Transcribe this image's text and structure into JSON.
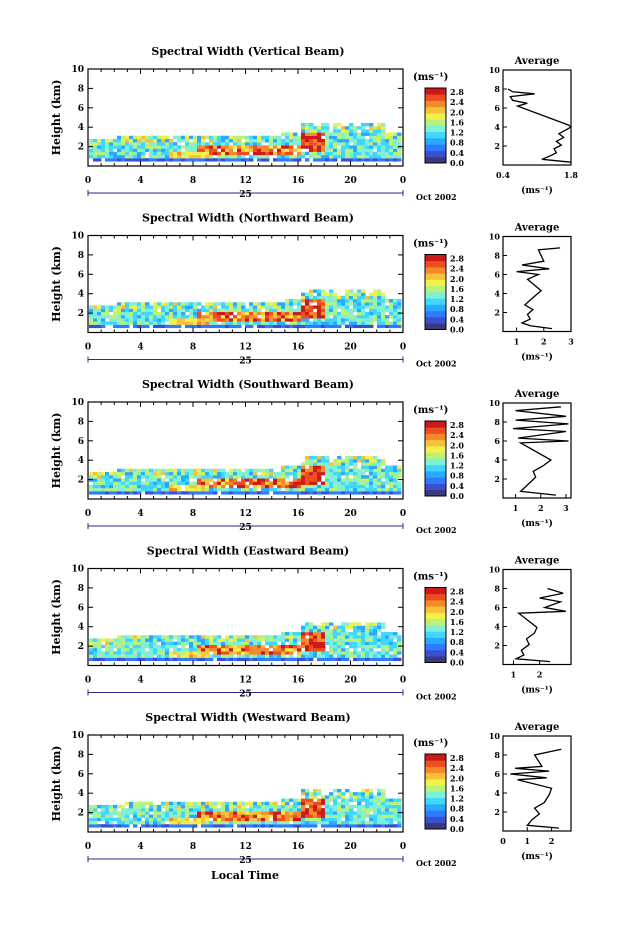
{
  "figure": {
    "bottom_label": "Local Time",
    "colors": {
      "colorbar": [
        "#3a3a7a",
        "#3c4fd0",
        "#2f7bff",
        "#29a9ff",
        "#3fd6ff",
        "#7ef0d8",
        "#b8f27a",
        "#f2f04a",
        "#f7c23a",
        "#f58a2a",
        "#ef4d1f",
        "#cc1a1a"
      ],
      "axis": "#000000",
      "date_axis": "#2a2a8a"
    }
  },
  "chart_data": [
    {
      "type": "heatmap",
      "title": "Spectral Width (Vertical Beam)",
      "ylabel": "Height (km)",
      "ylim": [
        0,
        10
      ],
      "yticks": [
        "2",
        "4",
        "6",
        "8",
        "10"
      ],
      "xlim": [
        0,
        24
      ],
      "xticks": [
        "0",
        "4",
        "8",
        "12",
        "16",
        "20",
        "0"
      ],
      "date_day": "25",
      "date_label": "Oct 2002",
      "colorbar": {
        "unit": "(ms⁻¹)",
        "ticks": [
          "0.0",
          "0.4",
          "0.8",
          "1.2",
          "1.6",
          "2.0",
          "2.4",
          "2.8"
        ]
      },
      "average": {
        "title": "Average",
        "xlabel": "(ms⁻¹)",
        "xlim": [
          0.4,
          1.8
        ],
        "xticks": [
          "0.4",
          "1.8"
        ],
        "ylim": [
          0,
          10
        ],
        "yticks": [
          "2",
          "4",
          "6",
          "8",
          "10"
        ],
        "profile": [
          [
            1.8,
            0.3
          ],
          [
            1.2,
            0.6
          ],
          [
            1.35,
            0.9
          ],
          [
            1.5,
            1.3
          ],
          [
            1.45,
            1.7
          ],
          [
            1.6,
            2.1
          ],
          [
            1.5,
            2.5
          ],
          [
            1.65,
            2.9
          ],
          [
            1.55,
            3.3
          ],
          [
            1.7,
            3.7
          ],
          [
            1.8,
            4.0
          ],
          [
            1.75,
            4.2
          ],
          [
            0.7,
            6.2
          ],
          [
            0.9,
            6.5
          ],
          [
            0.6,
            6.8
          ],
          [
            0.55,
            7.2
          ],
          [
            1.05,
            7.5
          ],
          [
            0.6,
            7.7
          ],
          [
            0.5,
            8.0
          ]
        ]
      }
    },
    {
      "type": "heatmap",
      "title": "Spectral Width (Northward Beam)",
      "ylabel": "Height (km)",
      "ylim": [
        0,
        10
      ],
      "yticks": [
        "2",
        "4",
        "6",
        "8",
        "10"
      ],
      "xlim": [
        0,
        24
      ],
      "xticks": [
        "0",
        "4",
        "8",
        "12",
        "16",
        "20",
        "0"
      ],
      "date_day": "25",
      "date_label": "Oct 2002",
      "colorbar": {
        "unit": "(ms⁻¹)",
        "ticks": [
          "0.0",
          "0.4",
          "0.8",
          "1.2",
          "1.6",
          "2.0",
          "2.4",
          "2.8"
        ]
      },
      "average": {
        "title": "Average",
        "xlabel": "(ms⁻¹)",
        "xlim": [
          0.5,
          3
        ],
        "xticks": [
          "1",
          "2",
          "3"
        ],
        "ylim": [
          0,
          10
        ],
        "yticks": [
          "2",
          "4",
          "6",
          "8",
          "10"
        ],
        "profile": [
          [
            2.3,
            0.3
          ],
          [
            1.5,
            0.6
          ],
          [
            1.2,
            0.9
          ],
          [
            1.5,
            1.3
          ],
          [
            1.4,
            1.8
          ],
          [
            1.6,
            2.3
          ],
          [
            1.3,
            2.8
          ],
          [
            1.5,
            3.3
          ],
          [
            1.7,
            3.8
          ],
          [
            1.9,
            4.3
          ],
          [
            1.4,
            5.5
          ],
          [
            1.8,
            6.0
          ],
          [
            1.0,
            6.3
          ],
          [
            2.2,
            6.6
          ],
          [
            1.2,
            7.0
          ],
          [
            2.0,
            7.4
          ],
          [
            1.8,
            8.6
          ],
          [
            2.6,
            8.8
          ]
        ]
      }
    },
    {
      "type": "heatmap",
      "title": "Spectral Width (Southward Beam)",
      "ylabel": "Height (km)",
      "ylim": [
        0,
        10
      ],
      "yticks": [
        "2",
        "4",
        "6",
        "8",
        "10"
      ],
      "xlim": [
        0,
        24
      ],
      "xticks": [
        "0",
        "4",
        "8",
        "12",
        "16",
        "20",
        "0"
      ],
      "date_day": "25",
      "date_label": "Oct 2002",
      "colorbar": {
        "unit": "(ms⁻¹)",
        "ticks": [
          "0.0",
          "0.4",
          "0.8",
          "1.2",
          "1.6",
          "2.0",
          "2.4",
          "2.8"
        ]
      },
      "average": {
        "title": "Average",
        "xlabel": "(ms⁻¹)",
        "xlim": [
          0.5,
          3.2
        ],
        "xticks": [
          "1",
          "2",
          "3"
        ],
        "ylim": [
          0,
          10
        ],
        "yticks": [
          "2",
          "4",
          "6",
          "8",
          "10"
        ],
        "profile": [
          [
            2.6,
            0.3
          ],
          [
            1.2,
            0.7
          ],
          [
            1.4,
            1.2
          ],
          [
            1.6,
            1.7
          ],
          [
            1.8,
            2.2
          ],
          [
            1.7,
            2.8
          ],
          [
            2.1,
            3.4
          ],
          [
            2.4,
            4.0
          ],
          [
            1.2,
            5.8
          ],
          [
            3.1,
            6.0
          ],
          [
            1.1,
            6.3
          ],
          [
            3.0,
            7.0
          ],
          [
            0.9,
            7.3
          ],
          [
            3.1,
            7.8
          ],
          [
            1.0,
            8.2
          ],
          [
            3.0,
            8.6
          ],
          [
            1.0,
            9.2
          ],
          [
            2.8,
            9.6
          ]
        ]
      }
    },
    {
      "type": "heatmap",
      "title": "Spectral Width (Eastward Beam)",
      "ylabel": "Height (km)",
      "ylim": [
        0,
        10
      ],
      "yticks": [
        "2",
        "4",
        "6",
        "8",
        "10"
      ],
      "xlim": [
        0,
        24
      ],
      "xticks": [
        "0",
        "4",
        "8",
        "12",
        "16",
        "20",
        "0"
      ],
      "date_day": "25",
      "date_label": "Oct 2002",
      "colorbar": {
        "unit": "(ms⁻¹)",
        "ticks": [
          "0.0",
          "0.4",
          "0.8",
          "1.2",
          "1.6",
          "2.0",
          "2.4",
          "2.8"
        ]
      },
      "average": {
        "title": "Average",
        "xlabel": "(ms⁻¹)",
        "xlim": [
          0.6,
          3.2
        ],
        "xticks": [
          "1",
          "2"
        ],
        "ylim": [
          0,
          10
        ],
        "yticks": [
          "2",
          "4",
          "6",
          "8",
          "10"
        ],
        "profile": [
          [
            2.4,
            0.3
          ],
          [
            1.1,
            0.6
          ],
          [
            1.4,
            1.0
          ],
          [
            1.3,
            1.5
          ],
          [
            1.6,
            2.1
          ],
          [
            1.5,
            2.7
          ],
          [
            1.8,
            3.3
          ],
          [
            1.9,
            3.9
          ],
          [
            1.2,
            5.4
          ],
          [
            3.0,
            5.6
          ],
          [
            2.2,
            6.0
          ],
          [
            2.8,
            6.6
          ],
          [
            2.0,
            7.0
          ],
          [
            2.9,
            7.5
          ],
          [
            2.3,
            8.0
          ]
        ]
      }
    },
    {
      "type": "heatmap",
      "title": "Spectral Width (Westward Beam)",
      "ylabel": "Height (km)",
      "ylim": [
        0,
        10
      ],
      "yticks": [
        "2",
        "4",
        "6",
        "8",
        "10"
      ],
      "xlim": [
        0,
        24
      ],
      "xticks": [
        "0",
        "4",
        "8",
        "12",
        "16",
        "20",
        "0"
      ],
      "date_day": "25",
      "date_label": "Oct 2002",
      "colorbar": {
        "unit": "(ms⁻¹)",
        "ticks": [
          "0.0",
          "0.4",
          "0.8",
          "1.2",
          "1.6",
          "2.0",
          "2.4",
          "2.8"
        ]
      },
      "average": {
        "title": "Average",
        "xlabel": "(ms⁻¹)",
        "xlim": [
          0,
          2.8
        ],
        "xticks": [
          "0",
          "1",
          "2"
        ],
        "ylim": [
          0,
          10
        ],
        "yticks": [
          "2",
          "4",
          "6",
          "8",
          "10"
        ],
        "profile": [
          [
            2.3,
            0.3
          ],
          [
            1.0,
            0.6
          ],
          [
            1.2,
            1.2
          ],
          [
            1.5,
            1.8
          ],
          [
            1.3,
            2.4
          ],
          [
            1.7,
            3.0
          ],
          [
            1.9,
            3.8
          ],
          [
            2.0,
            4.5
          ],
          [
            0.6,
            5.4
          ],
          [
            1.8,
            5.6
          ],
          [
            0.3,
            6.0
          ],
          [
            1.9,
            6.3
          ],
          [
            0.5,
            6.6
          ],
          [
            1.6,
            6.8
          ],
          [
            1.3,
            8.0
          ],
          [
            2.4,
            8.6
          ]
        ]
      }
    }
  ]
}
